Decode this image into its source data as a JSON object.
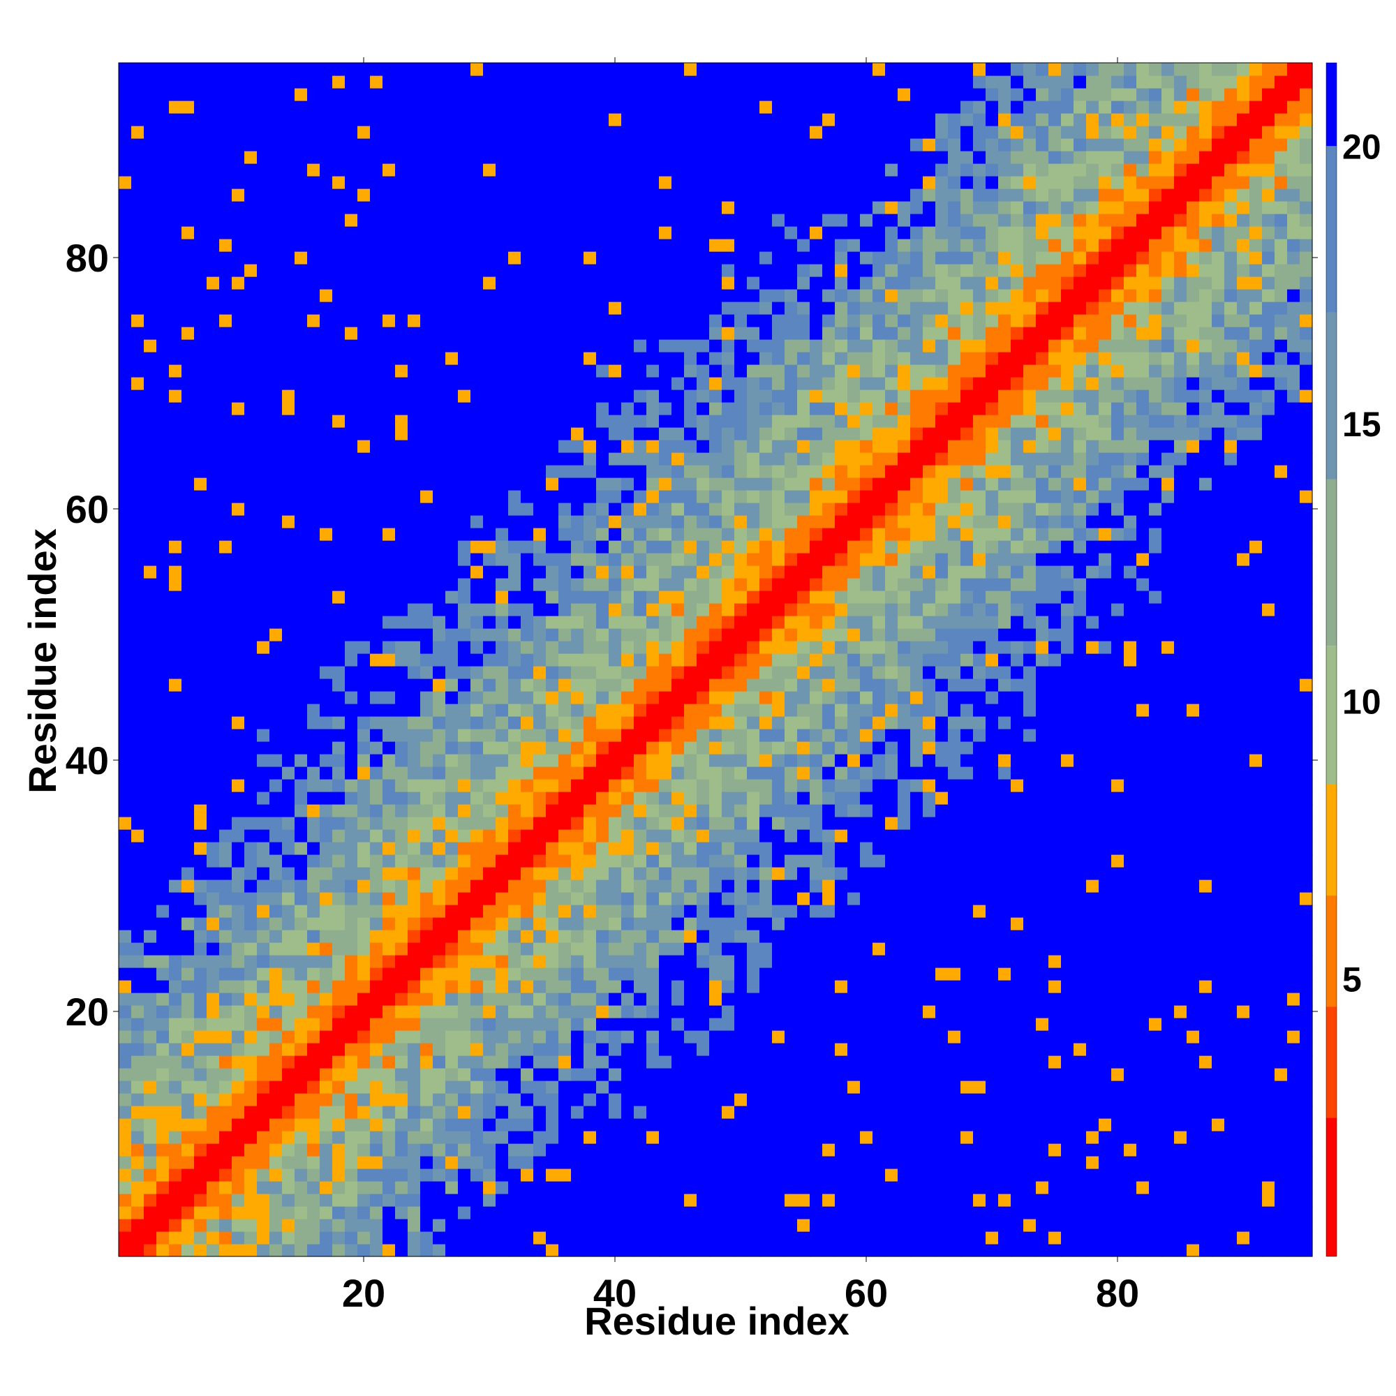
{
  "chart_data": {
    "type": "heatmap",
    "title": "",
    "xlabel": "Residue index",
    "ylabel": "Residue index",
    "x_range": [
      1,
      95
    ],
    "y_range": [
      1,
      95
    ],
    "x_ticks": [
      20,
      40,
      60,
      80
    ],
    "y_ticks": [
      20,
      40,
      60,
      80
    ],
    "colorbar": {
      "range": [
        0,
        21.5
      ],
      "ticks": [
        5,
        10,
        15,
        20
      ],
      "colors": [
        {
          "from": 0,
          "to": 2.5,
          "color": "#ff0000"
        },
        {
          "from": 2.5,
          "to": 4.5,
          "color": "#ff4400"
        },
        {
          "from": 4.5,
          "to": 6.5,
          "color": "#ff7a00"
        },
        {
          "from": 6.5,
          "to": 8.5,
          "color": "#ffaa00"
        },
        {
          "from": 8.5,
          "to": 11,
          "color": "#9fbd8a"
        },
        {
          "from": 11,
          "to": 14,
          "color": "#8fae8f"
        },
        {
          "from": 14,
          "to": 17,
          "color": "#6f96b0"
        },
        {
          "from": 17,
          "to": 20,
          "color": "#5b86c0"
        },
        {
          "from": 20,
          "to": 21.5,
          "color": "#0000ff"
        }
      ]
    },
    "description": "Symmetric residue-residue distance map, 95 x 95 residues; diagonal band red (< 4), flanked by orange bands; far-off-diagonal regions mostly blue (> 20) with mottled grey-blue and green cells.",
    "cells_generator": "contact-map"
  }
}
